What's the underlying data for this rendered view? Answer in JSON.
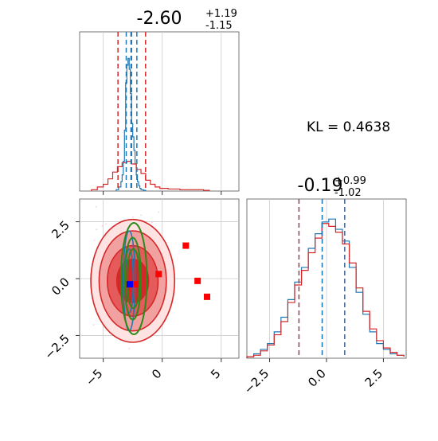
{
  "chart_data": [
    {
      "type": "line",
      "panel": "marginal-x",
      "title": {
        "median": "-2.60",
        "plus": "+1.19",
        "minus": "-1.15"
      },
      "xlim": [
        -7,
        6.5
      ],
      "xticks": [
        -5,
        0,
        5
      ],
      "grid": true,
      "series": [
        {
          "color": "#1f77b4",
          "style": "step",
          "x": [
            -3.9,
            -3.7,
            -3.5,
            -3.4,
            -3.3,
            -3.2,
            -3.1,
            -3.0,
            -2.9,
            -2.8,
            -2.7,
            -2.6,
            -2.5,
            -2.4,
            -2.3,
            -2.2,
            -2.1,
            -2.0,
            -1.9,
            -1.8,
            -1.6,
            -1.4
          ],
          "y": [
            0.01,
            0.03,
            0.07,
            0.12,
            0.22,
            0.45,
            0.8,
            0.93,
            0.98,
            0.9,
            0.72,
            0.5,
            0.4,
            0.3,
            0.2,
            0.12,
            0.07,
            0.04,
            0.02,
            0.01,
            0.005,
            0
          ]
        },
        {
          "color": "#d62728",
          "style": "step",
          "x": [
            -6.0,
            -5.5,
            -5.0,
            -4.6,
            -4.2,
            -3.8,
            -3.4,
            -3.0,
            -2.6,
            -2.2,
            -1.8,
            -1.4,
            -1.0,
            -0.6,
            -0.2,
            0.5,
            1.5,
            2.5,
            3.5,
            4.0
          ],
          "y": [
            0.01,
            0.03,
            0.05,
            0.09,
            0.14,
            0.18,
            0.21,
            0.22,
            0.2,
            0.16,
            0.13,
            0.08,
            0.05,
            0.03,
            0.02,
            0.015,
            0.01,
            0.01,
            0.005,
            0
          ]
        }
      ],
      "quantiles_red": [
        -3.75,
        -2.6,
        -1.41
      ],
      "quantiles_blue": [
        -3.05,
        -2.65,
        -2.15
      ]
    },
    {
      "type": "scatter",
      "panel": "joint",
      "xlim": [
        -7,
        6.5
      ],
      "ylim": [
        -3.5,
        3.5
      ],
      "xticks": [
        -5,
        0,
        5
      ],
      "yticks": [
        -2.5,
        0.0,
        2.5
      ],
      "grid": true,
      "red_markers": [
        [
          -0.3,
          0.2
        ],
        [
          2.0,
          1.45
        ],
        [
          3.0,
          -0.1
        ],
        [
          3.8,
          -0.8
        ],
        [
          -2.3,
          -0.25
        ]
      ],
      "blue_markers": [
        [
          -2.75,
          -0.25
        ]
      ],
      "red_contours_filled": true,
      "green_ellipses": [
        {
          "cx": -2.4,
          "cy": 0.0,
          "rx": 1.1,
          "ry": 2.45
        },
        {
          "cx": -2.5,
          "cy": 0.0,
          "rx": 0.7,
          "ry": 1.8
        },
        {
          "cx": -2.45,
          "cy": 0.0,
          "rx": 0.55,
          "ry": 1.3
        }
      ],
      "blue_contours": [
        {
          "cx": -2.8,
          "cy": -0.1,
          "rx": 0.5,
          "ry": 2.2
        },
        {
          "cx": -2.8,
          "cy": -0.1,
          "rx": 0.35,
          "ry": 1.4
        }
      ]
    },
    {
      "type": "line",
      "panel": "marginal-y",
      "title": {
        "median": "-0.19",
        "plus": "+0.99",
        "minus": "-1.02"
      },
      "xlim": [
        -3.5,
        3.5
      ],
      "xticks": [
        -2.5,
        0.0,
        2.5
      ],
      "grid": true,
      "series": [
        {
          "color": "#1f77b4",
          "style": "step",
          "x": [
            -3.5,
            -3.2,
            -2.9,
            -2.6,
            -2.3,
            -2.0,
            -1.7,
            -1.4,
            -1.1,
            -0.8,
            -0.5,
            -0.2,
            0.1,
            0.4,
            0.7,
            1.0,
            1.3,
            1.6,
            1.9,
            2.2,
            2.5,
            2.8,
            3.1,
            3.4
          ],
          "y": [
            0.01,
            0.03,
            0.06,
            0.1,
            0.18,
            0.28,
            0.4,
            0.52,
            0.62,
            0.75,
            0.85,
            0.93,
            0.95,
            0.88,
            0.8,
            0.62,
            0.45,
            0.3,
            0.18,
            0.1,
            0.06,
            0.03,
            0.02,
            0.01
          ]
        },
        {
          "color": "#d62728",
          "style": "step",
          "x": [
            -3.5,
            -3.2,
            -2.9,
            -2.6,
            -2.3,
            -2.0,
            -1.7,
            -1.4,
            -1.1,
            -0.8,
            -0.5,
            -0.2,
            0.1,
            0.4,
            0.7,
            1.0,
            1.3,
            1.6,
            1.9,
            2.2,
            2.5,
            2.8,
            3.1,
            3.4
          ],
          "y": [
            0.01,
            0.02,
            0.05,
            0.09,
            0.16,
            0.25,
            0.38,
            0.5,
            0.6,
            0.72,
            0.82,
            0.92,
            0.9,
            0.86,
            0.78,
            0.65,
            0.48,
            0.32,
            0.2,
            0.12,
            0.07,
            0.04,
            0.02,
            0.01
          ]
        }
      ],
      "quantiles_red": [
        -1.21,
        -0.19,
        0.8
      ],
      "quantiles_blue": [
        -1.21,
        -0.19,
        0.8
      ]
    }
  ],
  "annotation": {
    "kl_text": "KL = 0.4638"
  },
  "colors": {
    "red": "#d62728",
    "blue": "#1f77b4",
    "green": "#2a8a1a",
    "grid": "#cccccc"
  }
}
